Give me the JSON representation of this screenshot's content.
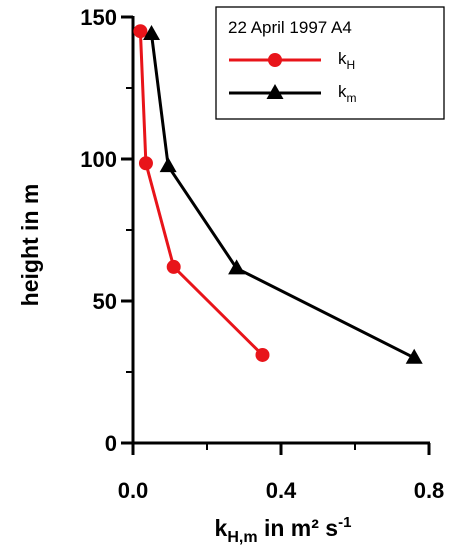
{
  "chart_data": {
    "type": "line",
    "title": "22 April 1997 A4",
    "xlabel": {
      "main": "k",
      "sub": "H,m",
      "rest": " in m² s",
      "sup": "-1"
    },
    "ylabel": "height in m",
    "xlim": [
      0.0,
      0.8
    ],
    "ylim": [
      0,
      150
    ],
    "x_ticks": [
      0.0,
      0.4,
      0.8
    ],
    "x_tick_labels": [
      "0.0",
      "0.4",
      "0.8"
    ],
    "y_ticks": [
      0,
      50,
      100,
      150
    ],
    "y_tick_labels": [
      "0",
      "50",
      "100",
      "150"
    ],
    "grid": false,
    "legend_position": "top-right",
    "series": [
      {
        "name": "k_H",
        "label_main": "k",
        "label_sub": "H",
        "color": "#e8141a",
        "marker": "circle",
        "points": [
          [
            0.02,
            145
          ],
          [
            0.035,
            98.5
          ],
          [
            0.11,
            62
          ],
          [
            0.35,
            31
          ]
        ]
      },
      {
        "name": "k_m",
        "label_main": "k",
        "label_sub": "m",
        "color": "#000000",
        "marker": "triangle",
        "points": [
          [
            0.05,
            144
          ],
          [
            0.095,
            97.5
          ],
          [
            0.28,
            61.5
          ],
          [
            0.76,
            30
          ]
        ]
      }
    ]
  }
}
